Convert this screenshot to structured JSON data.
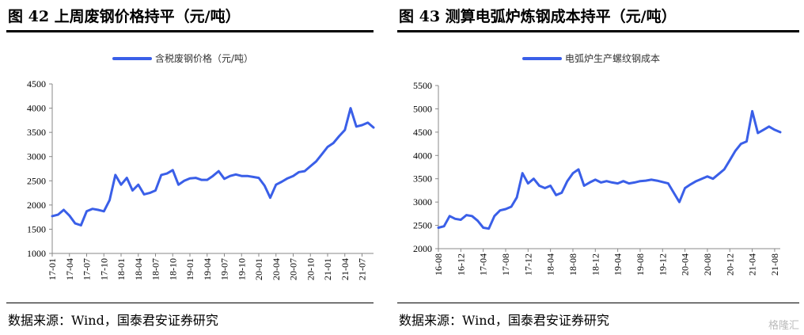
{
  "figures": [
    {
      "title": "图 42   上周废钢价格持平（元/吨）",
      "source": "数据来源：Wind，国泰君安证券研究",
      "chart_data": {
        "type": "line",
        "legend": "含税废钢价格（元/吨）",
        "legend_position": "top-center",
        "color": "#3a5fe8",
        "ylim": [
          1000,
          4500
        ],
        "yticks": [
          1000,
          1500,
          2000,
          2500,
          3000,
          3500,
          4000,
          4500
        ],
        "xticks": [
          "17-01",
          "17-04",
          "17-07",
          "17-10",
          "18-01",
          "18-04",
          "18-07",
          "18-10",
          "19-01",
          "19-04",
          "19-07",
          "19-10",
          "20-01",
          "20-04",
          "20-07",
          "20-10",
          "21-01",
          "21-04",
          "21-07"
        ],
        "xrange": [
          "2017-01",
          "2021-09"
        ],
        "grid": false,
        "series": [
          {
            "x": [
              "2017-01",
              "2017-02",
              "2017-03",
              "2017-04",
              "2017-05",
              "2017-06",
              "2017-07",
              "2017-08",
              "2017-09",
              "2017-10",
              "2017-11",
              "2017-12",
              "2018-01",
              "2018-02",
              "2018-03",
              "2018-04",
              "2018-05",
              "2018-06",
              "2018-07",
              "2018-08",
              "2018-09",
              "2018-10",
              "2018-11",
              "2018-12",
              "2019-01",
              "2019-02",
              "2019-03",
              "2019-04",
              "2019-05",
              "2019-06",
              "2019-07",
              "2019-08",
              "2019-09",
              "2019-10",
              "2019-11",
              "2019-12",
              "2020-01",
              "2020-02",
              "2020-03",
              "2020-04",
              "2020-05",
              "2020-06",
              "2020-07",
              "2020-08",
              "2020-09",
              "2020-10",
              "2020-11",
              "2020-12",
              "2021-01",
              "2021-02",
              "2021-03",
              "2021-04",
              "2021-05",
              "2021-06",
              "2021-07",
              "2021-08",
              "2021-09"
            ],
            "values": [
              1770,
              1800,
              1900,
              1780,
              1620,
              1580,
              1870,
              1920,
              1900,
              1870,
              2100,
              2620,
              2420,
              2560,
              2300,
              2420,
              2220,
              2250,
              2300,
              2620,
              2650,
              2720,
              2420,
              2500,
              2550,
              2560,
              2520,
              2520,
              2600,
              2700,
              2540,
              2600,
              2630,
              2600,
              2600,
              2580,
              2560,
              2400,
              2150,
              2420,
              2480,
              2550,
              2600,
              2680,
              2700,
              2800,
              2900,
              3050,
              3200,
              3280,
              3420,
              3550,
              4000,
              3620,
              3650,
              3700,
              3600
            ]
          }
        ]
      }
    },
    {
      "title": "图 43  测算电弧炉炼钢成本持平（元/吨）",
      "source": "数据来源：Wind，国泰君安证券研究",
      "chart_data": {
        "type": "line",
        "legend": "电弧炉生产螺纹钢成本",
        "legend_position": "top-center",
        "color": "#3a5fe8",
        "ylim": [
          2000,
          5500
        ],
        "yticks": [
          2000,
          2500,
          3000,
          3500,
          4000,
          4500,
          5000,
          5500
        ],
        "xticks": [
          "16-08",
          "16-12",
          "17-04",
          "17-08",
          "17-12",
          "18-04",
          "18-08",
          "18-12",
          "19-04",
          "19-08",
          "19-12",
          "20-04",
          "20-08",
          "20-12",
          "21-04",
          "21-08"
        ],
        "xrange": [
          "2016-08",
          "2021-09"
        ],
        "grid": false,
        "series": [
          {
            "x": [
              "2016-08",
              "2016-09",
              "2016-10",
              "2016-11",
              "2016-12",
              "2017-01",
              "2017-02",
              "2017-03",
              "2017-04",
              "2017-05",
              "2017-06",
              "2017-07",
              "2017-08",
              "2017-09",
              "2017-10",
              "2017-11",
              "2017-12",
              "2018-01",
              "2018-02",
              "2018-03",
              "2018-04",
              "2018-05",
              "2018-06",
              "2018-07",
              "2018-08",
              "2018-09",
              "2018-10",
              "2018-11",
              "2018-12",
              "2019-01",
              "2019-02",
              "2019-03",
              "2019-04",
              "2019-05",
              "2019-06",
              "2019-07",
              "2019-08",
              "2019-09",
              "2019-10",
              "2019-11",
              "2019-12",
              "2020-01",
              "2020-02",
              "2020-03",
              "2020-04",
              "2020-05",
              "2020-06",
              "2020-07",
              "2020-08",
              "2020-09",
              "2020-10",
              "2020-11",
              "2020-12",
              "2021-01",
              "2021-02",
              "2021-03",
              "2021-04",
              "2021-05",
              "2021-06",
              "2021-07",
              "2021-08",
              "2021-09"
            ],
            "values": [
              2450,
              2480,
              2700,
              2640,
              2620,
              2720,
              2700,
              2600,
              2450,
              2430,
              2700,
              2820,
              2850,
              2900,
              3100,
              3620,
              3400,
              3500,
              3350,
              3300,
              3350,
              3150,
              3200,
              3450,
              3620,
              3700,
              3350,
              3420,
              3480,
              3420,
              3450,
              3420,
              3400,
              3450,
              3400,
              3420,
              3450,
              3460,
              3480,
              3460,
              3430,
              3400,
              3200,
              3000,
              3300,
              3380,
              3450,
              3500,
              3550,
              3500,
              3600,
              3700,
              3900,
              4100,
              4250,
              4300,
              4950,
              4480,
              4550,
              4620,
              4550,
              4500
            ]
          }
        ]
      }
    }
  ],
  "watermark": "格隆汇"
}
